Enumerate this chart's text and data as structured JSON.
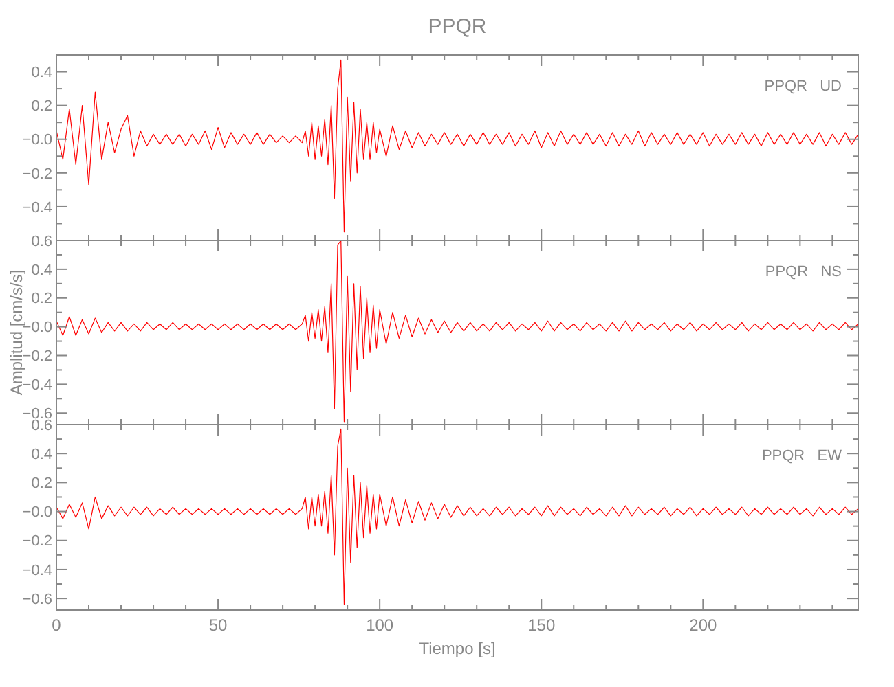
{
  "chart_data": [
    {
      "type": "line",
      "title": "PPQR",
      "annotations": [
        "PPQR   UD"
      ],
      "tick_labels": "y",
      "xlim": [
        0,
        248
      ],
      "xticks": [
        0,
        {
          "value": 10,
          "label": null
        },
        {
          "value": 20,
          "label": null
        },
        {
          "value": 30,
          "label": null
        },
        {
          "value": 40,
          "label": null
        },
        50,
        {
          "value": 60,
          "label": null
        },
        {
          "value": 70,
          "label": null
        },
        {
          "value": 80,
          "label": null
        },
        {
          "value": 90,
          "label": null
        },
        100,
        {
          "value": 110,
          "label": null
        },
        {
          "value": 120,
          "label": null
        },
        {
          "value": 130,
          "label": null
        },
        {
          "value": 140,
          "label": null
        },
        150,
        {
          "value": 160,
          "label": null
        },
        {
          "value": 170,
          "label": null
        },
        {
          "value": 180,
          "label": null
        },
        {
          "value": 190,
          "label": null
        },
        200,
        {
          "value": 210,
          "label": null
        },
        {
          "value": 220,
          "label": null
        },
        {
          "value": 230,
          "label": null
        },
        {
          "value": 240,
          "label": null
        }
      ],
      "ylim": [
        -0.6,
        0.5
      ],
      "yticks": [
        {
          "value": -0.5,
          "label": null
        },
        {
          "value": -0.4,
          "label": "−0.4"
        },
        {
          "value": -0.3,
          "label": null
        },
        {
          "value": -0.2,
          "label": "−0.2"
        },
        {
          "value": -0.1,
          "label": null
        },
        {
          "value": 0,
          "label": "−0.0"
        },
        {
          "value": 0.1,
          "label": null
        },
        {
          "value": 0.2,
          "label": "0.2"
        },
        {
          "value": 0.3,
          "label": null
        },
        {
          "value": 0.4,
          "label": "0.4"
        }
      ],
      "x": [
        0,
        2,
        4,
        6,
        8,
        10,
        12,
        14,
        16,
        18,
        20,
        22,
        24,
        26,
        28,
        30,
        32,
        34,
        36,
        38,
        40,
        42,
        44,
        46,
        48,
        50,
        52,
        54,
        56,
        58,
        60,
        62,
        64,
        66,
        68,
        70,
        72,
        74,
        76,
        77,
        78,
        79,
        80,
        81,
        82,
        83,
        84,
        85,
        86,
        87,
        88,
        89,
        90,
        91,
        92,
        93,
        94,
        95,
        96,
        97,
        98,
        99,
        100,
        102,
        104,
        106,
        108,
        110,
        112,
        114,
        116,
        118,
        120,
        122,
        124,
        126,
        128,
        130,
        132,
        134,
        136,
        138,
        140,
        142,
        144,
        146,
        148,
        150,
        152,
        154,
        156,
        158,
        160,
        162,
        164,
        166,
        168,
        170,
        172,
        174,
        176,
        178,
        180,
        182,
        184,
        186,
        188,
        190,
        192,
        194,
        196,
        198,
        200,
        202,
        204,
        206,
        208,
        210,
        212,
        214,
        216,
        218,
        220,
        222,
        224,
        226,
        228,
        230,
        232,
        234,
        236,
        238,
        240,
        242,
        244,
        246,
        248
      ],
      "series": [
        {
          "color": "#ff0000",
          "values": [
            0.05,
            -0.12,
            0.18,
            -0.15,
            0.2,
            -0.27,
            0.28,
            -0.12,
            0.1,
            -0.08,
            0.06,
            0.14,
            -0.1,
            0.05,
            -0.04,
            0.03,
            -0.03,
            0.03,
            -0.03,
            0.03,
            -0.04,
            0.03,
            -0.03,
            0.05,
            -0.06,
            0.07,
            -0.05,
            0.04,
            -0.03,
            0.03,
            -0.03,
            0.04,
            -0.03,
            0.03,
            -0.02,
            0.02,
            -0.02,
            0.02,
            -0.02,
            0.05,
            -0.1,
            0.1,
            -0.12,
            0.08,
            -0.1,
            0.12,
            -0.15,
            0.2,
            -0.35,
            0.3,
            0.47,
            -0.55,
            0.25,
            -0.25,
            0.22,
            -0.2,
            0.18,
            -0.12,
            0.1,
            -0.12,
            0.1,
            -0.08,
            0.06,
            -0.1,
            0.08,
            -0.06,
            0.05,
            -0.05,
            0.04,
            -0.04,
            0.03,
            -0.03,
            0.04,
            -0.03,
            0.03,
            -0.04,
            0.03,
            -0.03,
            0.04,
            -0.03,
            0.03,
            -0.03,
            0.04,
            -0.04,
            0.03,
            -0.03,
            0.05,
            -0.05,
            0.04,
            -0.04,
            0.05,
            -0.03,
            0.03,
            -0.03,
            0.04,
            -0.03,
            0.03,
            -0.04,
            0.04,
            -0.04,
            0.03,
            -0.03,
            0.05,
            -0.04,
            0.04,
            -0.03,
            0.03,
            -0.03,
            0.04,
            -0.03,
            0.03,
            -0.03,
            0.04,
            -0.04,
            0.03,
            -0.03,
            0.03,
            -0.03,
            0.04,
            -0.03,
            0.03,
            -0.04,
            0.04,
            -0.03,
            0.03,
            -0.03,
            0.04,
            -0.03,
            0.03,
            -0.03,
            0.04,
            -0.04,
            0.03,
            -0.03,
            0.04,
            -0.03,
            0.03
          ]
        }
      ]
    },
    {
      "type": "line",
      "ylabel": "Amplitud [cm/s/s]",
      "annotations": [
        "PPQR   NS"
      ],
      "tick_labels": "y",
      "xlim": [
        0,
        248
      ],
      "xticks": [
        0,
        {
          "value": 10,
          "label": null
        },
        {
          "value": 20,
          "label": null
        },
        {
          "value": 30,
          "label": null
        },
        {
          "value": 40,
          "label": null
        },
        50,
        {
          "value": 60,
          "label": null
        },
        {
          "value": 70,
          "label": null
        },
        {
          "value": 80,
          "label": null
        },
        {
          "value": 90,
          "label": null
        },
        100,
        {
          "value": 110,
          "label": null
        },
        {
          "value": 120,
          "label": null
        },
        {
          "value": 130,
          "label": null
        },
        {
          "value": 140,
          "label": null
        },
        150,
        {
          "value": 160,
          "label": null
        },
        {
          "value": 170,
          "label": null
        },
        {
          "value": 180,
          "label": null
        },
        {
          "value": 190,
          "label": null
        },
        200,
        {
          "value": 210,
          "label": null
        },
        {
          "value": 220,
          "label": null
        },
        {
          "value": 230,
          "label": null
        },
        {
          "value": 240,
          "label": null
        }
      ],
      "ylim": [
        -0.68,
        0.6
      ],
      "yticks": [
        {
          "value": -0.6,
          "label": "−0.6"
        },
        {
          "value": -0.5,
          "label": null
        },
        {
          "value": -0.4,
          "label": "−0.4"
        },
        {
          "value": -0.3,
          "label": null
        },
        {
          "value": -0.2,
          "label": "−0.2"
        },
        {
          "value": -0.1,
          "label": null
        },
        {
          "value": 0,
          "label": "−0.0"
        },
        {
          "value": 0.1,
          "label": null
        },
        {
          "value": 0.2,
          "label": "0.2"
        },
        {
          "value": 0.3,
          "label": null
        },
        {
          "value": 0.4,
          "label": "0.4"
        },
        {
          "value": 0.5,
          "label": null
        },
        {
          "value": 0.6,
          "label": "0.6"
        }
      ],
      "x": [
        0,
        2,
        4,
        6,
        8,
        10,
        12,
        14,
        16,
        18,
        20,
        22,
        24,
        26,
        28,
        30,
        32,
        34,
        36,
        38,
        40,
        42,
        44,
        46,
        48,
        50,
        52,
        54,
        56,
        58,
        60,
        62,
        64,
        66,
        68,
        70,
        72,
        74,
        76,
        77,
        78,
        79,
        80,
        81,
        82,
        83,
        84,
        85,
        86,
        87,
        88,
        89,
        90,
        91,
        92,
        93,
        94,
        95,
        96,
        97,
        98,
        99,
        100,
        102,
        104,
        106,
        108,
        110,
        112,
        114,
        116,
        118,
        120,
        122,
        124,
        126,
        128,
        130,
        132,
        134,
        136,
        138,
        140,
        142,
        144,
        146,
        148,
        150,
        152,
        154,
        156,
        158,
        160,
        162,
        164,
        166,
        168,
        170,
        172,
        174,
        176,
        178,
        180,
        182,
        184,
        186,
        188,
        190,
        192,
        194,
        196,
        198,
        200,
        202,
        204,
        206,
        208,
        210,
        212,
        214,
        216,
        218,
        220,
        222,
        224,
        226,
        228,
        230,
        232,
        234,
        236,
        238,
        240,
        242,
        244,
        246,
        248
      ],
      "series": [
        {
          "color": "#ff0000",
          "values": [
            0.04,
            -0.06,
            0.07,
            -0.06,
            0.05,
            -0.05,
            0.06,
            -0.04,
            0.03,
            -0.03,
            0.03,
            -0.03,
            0.02,
            -0.03,
            0.03,
            -0.02,
            0.02,
            -0.02,
            0.03,
            -0.02,
            0.02,
            -0.02,
            0.02,
            -0.02,
            0.02,
            -0.02,
            0.02,
            -0.02,
            0.02,
            -0.02,
            0.02,
            -0.02,
            0.02,
            -0.02,
            0.02,
            -0.02,
            0.02,
            -0.02,
            0.02,
            0.08,
            -0.1,
            0.1,
            -0.08,
            0.12,
            -0.1,
            0.14,
            -0.18,
            0.3,
            -0.57,
            0.57,
            0.6,
            -0.66,
            0.35,
            -0.45,
            0.3,
            -0.3,
            0.28,
            -0.22,
            0.2,
            -0.18,
            0.15,
            -0.15,
            0.12,
            -0.12,
            0.1,
            -0.08,
            0.08,
            -0.07,
            0.06,
            -0.05,
            0.05,
            -0.04,
            0.04,
            -0.04,
            0.03,
            -0.03,
            0.03,
            -0.03,
            0.02,
            -0.03,
            0.03,
            -0.02,
            0.03,
            -0.03,
            0.02,
            -0.02,
            0.03,
            -0.03,
            0.04,
            -0.03,
            0.03,
            -0.02,
            0.02,
            -0.03,
            0.03,
            -0.02,
            0.02,
            -0.03,
            0.03,
            -0.03,
            0.04,
            -0.03,
            0.03,
            -0.02,
            0.02,
            -0.02,
            0.03,
            -0.03,
            0.02,
            -0.02,
            0.03,
            -0.03,
            0.02,
            -0.02,
            0.03,
            -0.02,
            0.02,
            -0.02,
            0.03,
            -0.03,
            0.02,
            -0.02,
            0.03,
            -0.02,
            0.02,
            -0.02,
            0.03,
            -0.02,
            0.02,
            -0.03,
            0.03,
            -0.02,
            0.02,
            -0.02,
            0.03,
            -0.02,
            0.02
          ]
        }
      ]
    },
    {
      "type": "line",
      "xlabel": "Tiempo [s]",
      "annotations": [
        "PPQR   EW"
      ],
      "xlim": [
        0,
        248
      ],
      "xticks": [
        0,
        {
          "value": 10,
          "label": null
        },
        {
          "value": 20,
          "label": null
        },
        {
          "value": 30,
          "label": null
        },
        {
          "value": 40,
          "label": null
        },
        50,
        {
          "value": 60,
          "label": null
        },
        {
          "value": 70,
          "label": null
        },
        {
          "value": 80,
          "label": null
        },
        {
          "value": 90,
          "label": null
        },
        100,
        {
          "value": 110,
          "label": null
        },
        {
          "value": 120,
          "label": null
        },
        {
          "value": 130,
          "label": null
        },
        {
          "value": 140,
          "label": null
        },
        150,
        {
          "value": 160,
          "label": null
        },
        {
          "value": 170,
          "label": null
        },
        {
          "value": 180,
          "label": null
        },
        {
          "value": 190,
          "label": null
        },
        200,
        {
          "value": 210,
          "label": null
        },
        {
          "value": 220,
          "label": null
        },
        {
          "value": 230,
          "label": null
        },
        {
          "value": 240,
          "label": null
        }
      ],
      "ylim": [
        -0.68,
        0.6
      ],
      "yticks": [
        {
          "value": -0.6,
          "label": "−0.6"
        },
        {
          "value": -0.5,
          "label": null
        },
        {
          "value": -0.4,
          "label": "−0.4"
        },
        {
          "value": -0.3,
          "label": null
        },
        {
          "value": -0.2,
          "label": "−0.2"
        },
        {
          "value": -0.1,
          "label": null
        },
        {
          "value": 0,
          "label": "−0.0"
        },
        {
          "value": 0.1,
          "label": null
        },
        {
          "value": 0.2,
          "label": "0.2"
        },
        {
          "value": 0.3,
          "label": null
        },
        {
          "value": 0.4,
          "label": "0.4"
        },
        {
          "value": 0.5,
          "label": null
        },
        {
          "value": 0.6,
          "label": "0.6"
        }
      ],
      "x": [
        0,
        2,
        4,
        6,
        8,
        10,
        12,
        14,
        16,
        18,
        20,
        22,
        24,
        26,
        28,
        30,
        32,
        34,
        36,
        38,
        40,
        42,
        44,
        46,
        48,
        50,
        52,
        54,
        56,
        58,
        60,
        62,
        64,
        66,
        68,
        70,
        72,
        74,
        76,
        77,
        78,
        79,
        80,
        81,
        82,
        83,
        84,
        85,
        86,
        87,
        88,
        89,
        90,
        91,
        92,
        93,
        94,
        95,
        96,
        97,
        98,
        99,
        100,
        102,
        104,
        106,
        108,
        110,
        112,
        114,
        116,
        118,
        120,
        122,
        124,
        126,
        128,
        130,
        132,
        134,
        136,
        138,
        140,
        142,
        144,
        146,
        148,
        150,
        152,
        154,
        156,
        158,
        160,
        162,
        164,
        166,
        168,
        170,
        172,
        174,
        176,
        178,
        180,
        182,
        184,
        186,
        188,
        190,
        192,
        194,
        196,
        198,
        200,
        202,
        204,
        206,
        208,
        210,
        212,
        214,
        216,
        218,
        220,
        222,
        224,
        226,
        228,
        230,
        232,
        234,
        236,
        238,
        240,
        242,
        244,
        246,
        248
      ],
      "series": [
        {
          "color": "#ff0000",
          "values": [
            0.03,
            -0.05,
            0.05,
            -0.04,
            0.06,
            -0.12,
            0.1,
            -0.05,
            0.04,
            -0.03,
            0.03,
            -0.03,
            0.03,
            -0.02,
            0.03,
            -0.03,
            0.02,
            -0.02,
            0.03,
            -0.02,
            0.02,
            -0.02,
            0.02,
            -0.02,
            0.02,
            -0.02,
            0.02,
            -0.02,
            0.02,
            -0.02,
            0.02,
            -0.02,
            0.02,
            -0.02,
            0.02,
            -0.02,
            0.02,
            -0.02,
            0.02,
            0.1,
            -0.12,
            0.1,
            -0.1,
            0.12,
            -0.1,
            0.14,
            -0.15,
            0.25,
            -0.3,
            0.45,
            0.57,
            -0.64,
            0.3,
            -0.35,
            0.25,
            -0.25,
            0.2,
            -0.18,
            0.18,
            -0.15,
            0.12,
            -0.12,
            0.12,
            -0.1,
            0.1,
            -0.1,
            0.08,
            -0.08,
            0.07,
            -0.06,
            0.06,
            -0.05,
            0.05,
            -0.04,
            0.04,
            -0.03,
            0.03,
            -0.03,
            0.02,
            -0.03,
            0.03,
            -0.02,
            0.03,
            -0.03,
            0.02,
            -0.02,
            0.03,
            -0.03,
            0.04,
            -0.03,
            0.03,
            -0.02,
            0.02,
            -0.03,
            0.03,
            -0.02,
            0.02,
            -0.03,
            0.03,
            -0.03,
            0.04,
            -0.03,
            0.03,
            -0.02,
            0.02,
            -0.02,
            0.03,
            -0.03,
            0.02,
            -0.02,
            0.03,
            -0.03,
            0.02,
            -0.02,
            0.03,
            -0.02,
            0.02,
            -0.02,
            0.03,
            -0.03,
            0.02,
            -0.02,
            0.03,
            -0.02,
            0.02,
            -0.02,
            0.03,
            -0.02,
            0.02,
            -0.03,
            0.03,
            -0.02,
            0.02,
            -0.02,
            0.03,
            -0.02,
            0.02
          ]
        }
      ]
    }
  ]
}
